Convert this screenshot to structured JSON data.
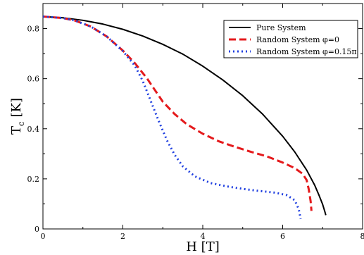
{
  "chart_data": {
    "type": "line",
    "title": "",
    "xlabel": "H [T]",
    "ylabel_main": "T",
    "ylabel_sub": "c",
    "ylabel_unit": "[K]",
    "xlim": [
      0,
      8
    ],
    "ylim": [
      0,
      0.9
    ],
    "xticks": [
      0,
      2,
      4,
      6,
      8
    ],
    "yticks": [
      0,
      0.2,
      0.4,
      0.6,
      0.8
    ],
    "xtick_labels": [
      "0",
      "2",
      "4",
      "6",
      "8"
    ],
    "ytick_labels": [
      "0",
      "0.2",
      "0.4",
      "0.6",
      "0.8"
    ],
    "grid": false,
    "legend_position": "top-right",
    "series": [
      {
        "name": "Pure System",
        "color": "#000000",
        "style": "solid",
        "x": [
          0,
          0.5,
          1,
          1.5,
          2,
          2.5,
          3,
          3.5,
          4,
          4.5,
          5,
          5.5,
          6,
          6.3,
          6.6,
          6.8,
          6.9,
          7.0,
          7.05,
          7.08
        ],
        "y": [
          0.848,
          0.843,
          0.833,
          0.818,
          0.797,
          0.77,
          0.737,
          0.698,
          0.65,
          0.595,
          0.532,
          0.458,
          0.37,
          0.308,
          0.235,
          0.175,
          0.138,
          0.098,
          0.072,
          0.055
        ]
      },
      {
        "name": "Random System φ=0",
        "color": "#e41a1c",
        "style": "dashed",
        "x": [
          0,
          0.5,
          0.8,
          1.2,
          1.6,
          2.0,
          2.3,
          2.6,
          2.8,
          3.0,
          3.3,
          3.6,
          4.0,
          4.4,
          4.8,
          5.2,
          5.6,
          6.0,
          6.3,
          6.5,
          6.6,
          6.65,
          6.7,
          6.72
        ],
        "y": [
          0.848,
          0.842,
          0.832,
          0.808,
          0.768,
          0.712,
          0.662,
          0.602,
          0.555,
          0.508,
          0.458,
          0.418,
          0.38,
          0.35,
          0.328,
          0.308,
          0.29,
          0.265,
          0.243,
          0.22,
          0.195,
          0.16,
          0.11,
          0.072
        ]
      },
      {
        "name": "Random System φ=0.15π",
        "color": "#1f3fe0",
        "style": "dotted",
        "x": [
          0,
          0.5,
          0.8,
          1.2,
          1.6,
          2.0,
          2.3,
          2.5,
          2.7,
          2.9,
          3.1,
          3.3,
          3.5,
          3.8,
          4.2,
          4.6,
          5.0,
          5.4,
          5.8,
          6.1,
          6.3,
          6.4,
          6.45
        ],
        "y": [
          0.848,
          0.842,
          0.832,
          0.808,
          0.768,
          0.71,
          0.652,
          0.59,
          0.51,
          0.43,
          0.355,
          0.295,
          0.25,
          0.21,
          0.183,
          0.17,
          0.16,
          0.152,
          0.145,
          0.135,
          0.115,
          0.08,
          0.04
        ]
      }
    ]
  }
}
